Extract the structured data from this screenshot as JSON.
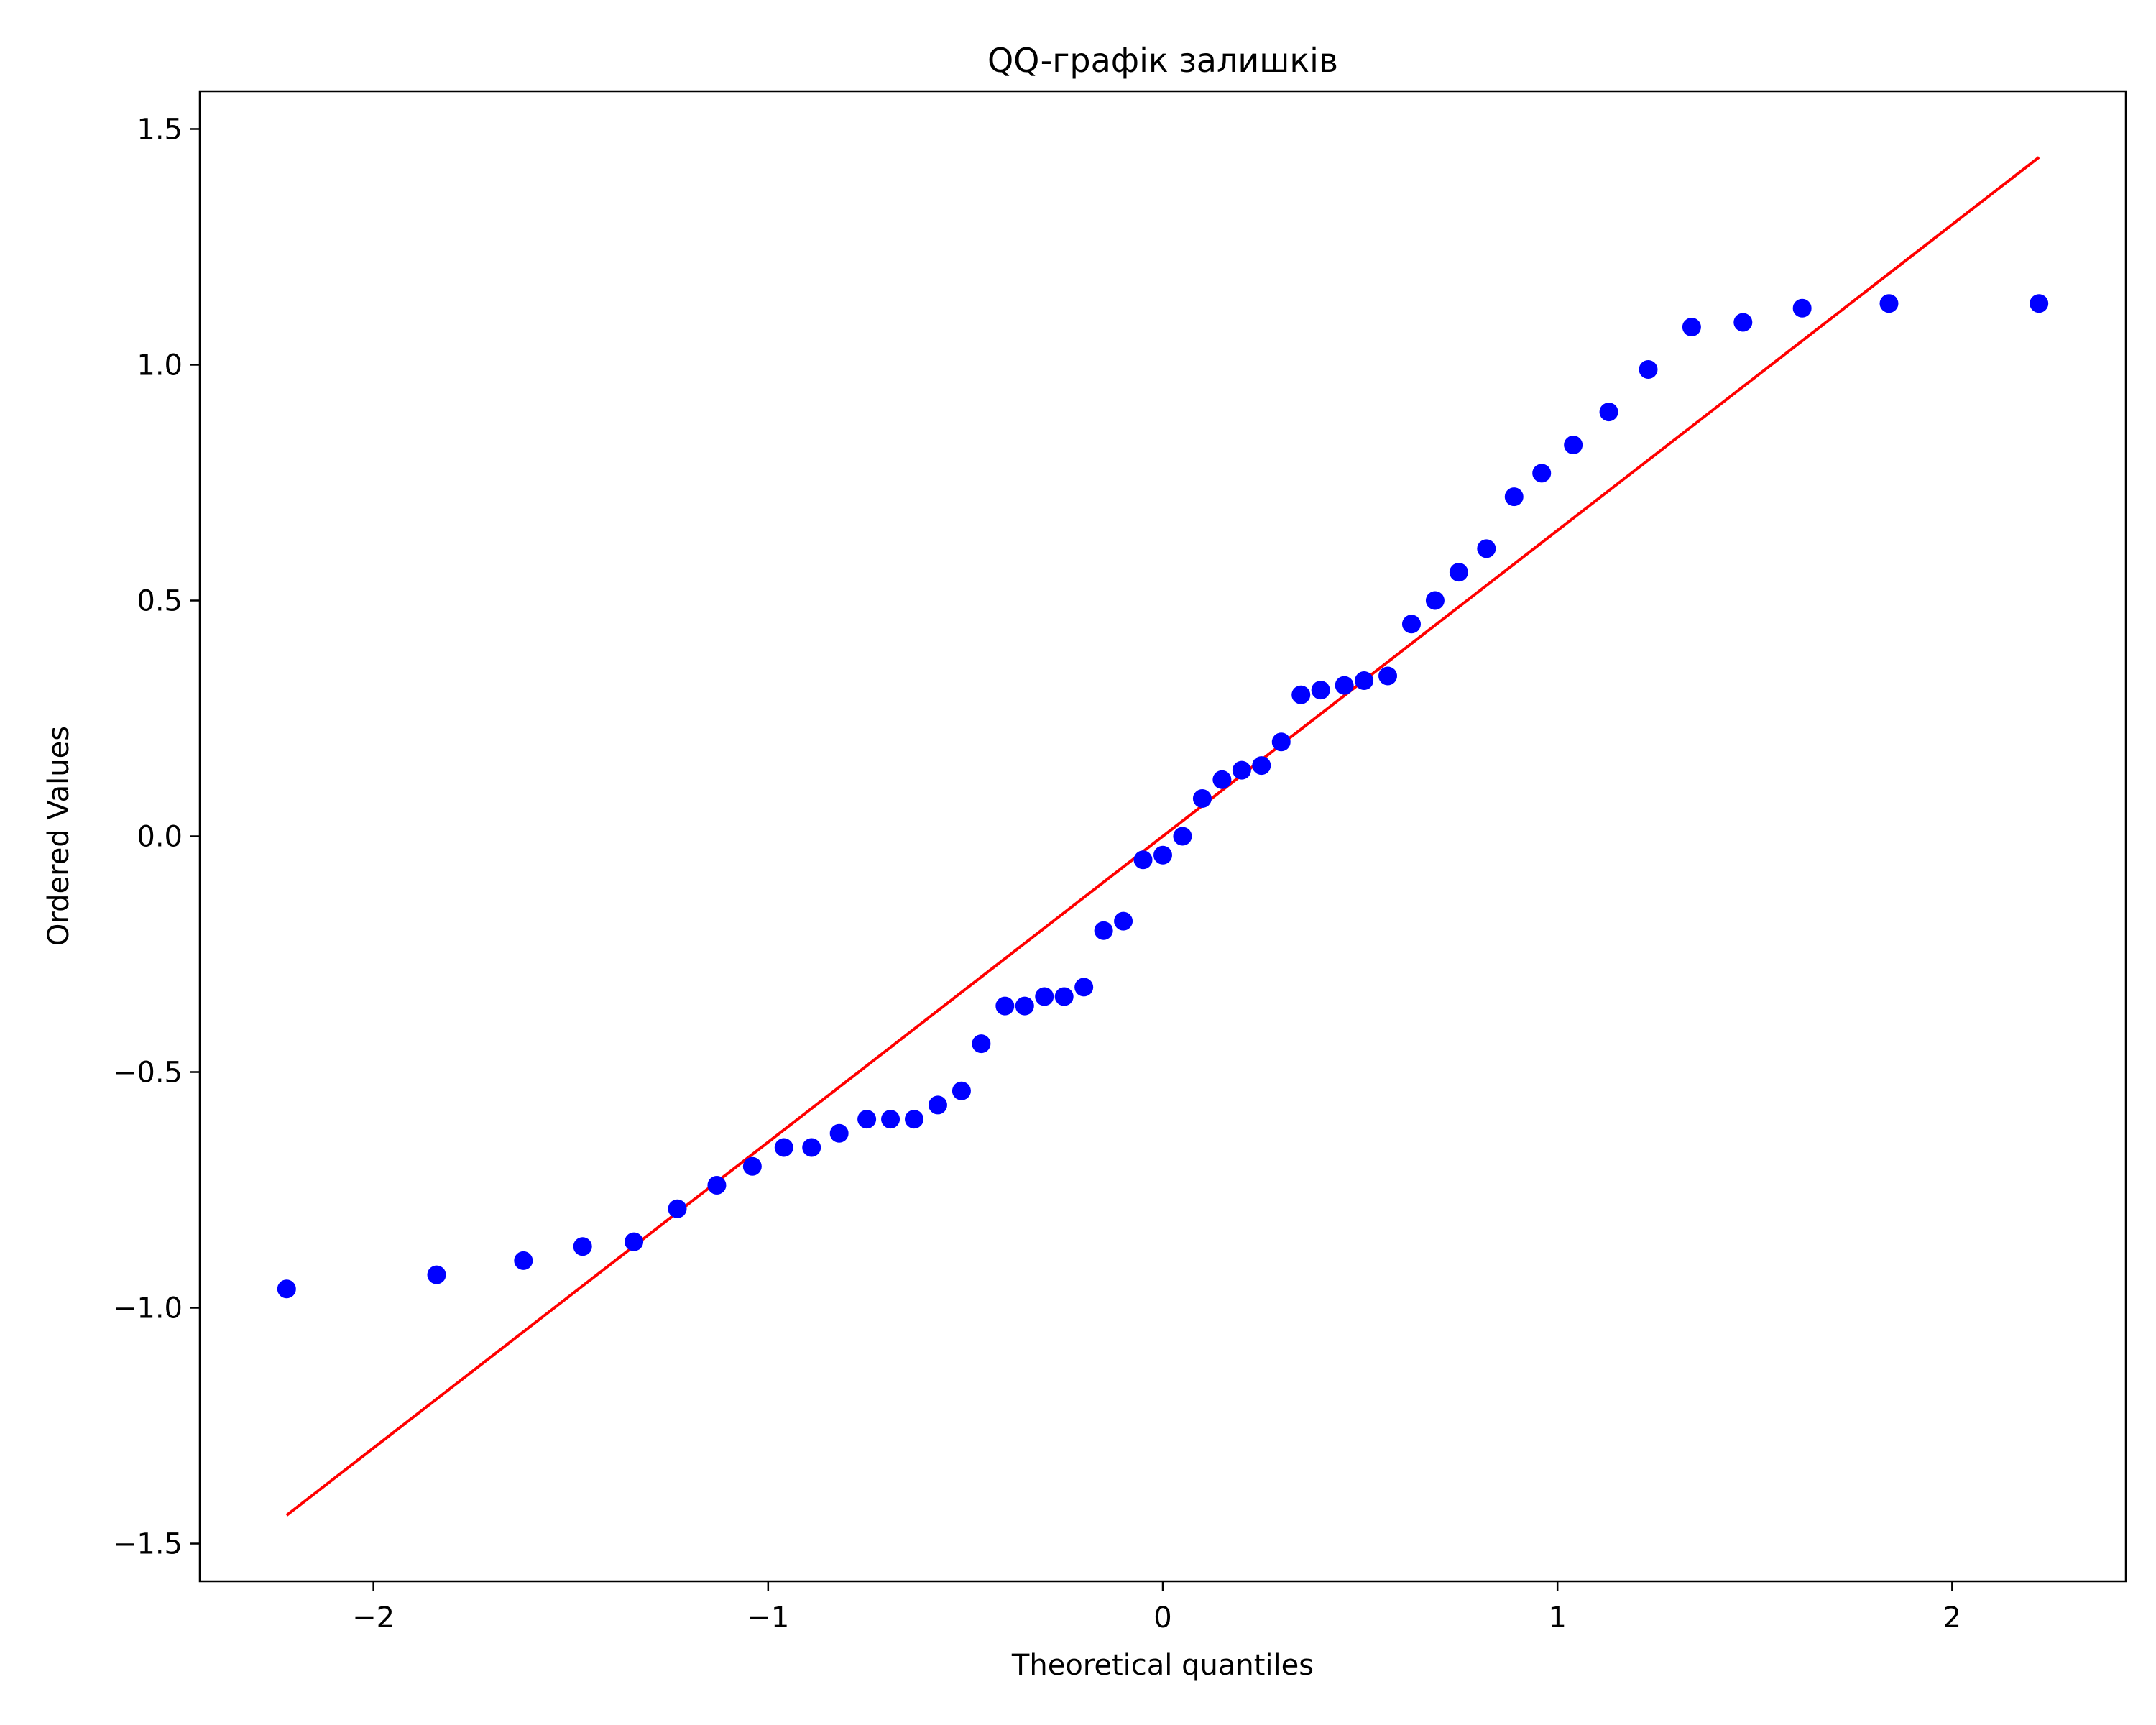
{
  "chart_data": {
    "type": "scatter",
    "title": "QQ-графік залишків",
    "xlabel": "Theoretical quantiles",
    "ylabel": "Ordered Values",
    "xlim": [
      -2.44,
      2.44
    ],
    "ylim": [
      -1.58,
      1.58
    ],
    "xticks": [
      {
        "value": -2,
        "label": "−2"
      },
      {
        "value": -1,
        "label": "−1"
      },
      {
        "value": 0,
        "label": "0"
      },
      {
        "value": 1,
        "label": "1"
      },
      {
        "value": 2,
        "label": "2"
      }
    ],
    "yticks": [
      {
        "value": -1.5,
        "label": "−1.5"
      },
      {
        "value": -1.0,
        "label": "−1.0"
      },
      {
        "value": -0.5,
        "label": "−0.5"
      },
      {
        "value": 0.0,
        "label": "0.0"
      },
      {
        "value": 0.5,
        "label": "0.5"
      },
      {
        "value": 1.0,
        "label": "1.0"
      },
      {
        "value": 1.5,
        "label": "1.5"
      }
    ],
    "grid": false,
    "series": [
      {
        "kind": "points",
        "color": "#0000ff",
        "points": [
          [
            -2.22,
            -0.96
          ],
          [
            -1.84,
            -0.93
          ],
          [
            -1.62,
            -0.9
          ],
          [
            -1.47,
            -0.87
          ],
          [
            -1.34,
            -0.86
          ],
          [
            -1.23,
            -0.79
          ],
          [
            -1.13,
            -0.74
          ],
          [
            -1.04,
            -0.7
          ],
          [
            -0.96,
            -0.66
          ],
          [
            -0.89,
            -0.66
          ],
          [
            -0.82,
            -0.63
          ],
          [
            -0.75,
            -0.6
          ],
          [
            -0.69,
            -0.6
          ],
          [
            -0.63,
            -0.6
          ],
          [
            -0.57,
            -0.57
          ],
          [
            -0.51,
            -0.54
          ],
          [
            -0.46,
            -0.44
          ],
          [
            -0.4,
            -0.36
          ],
          [
            -0.35,
            -0.36
          ],
          [
            -0.3,
            -0.34
          ],
          [
            -0.25,
            -0.34
          ],
          [
            -0.2,
            -0.32
          ],
          [
            -0.15,
            -0.2
          ],
          [
            -0.1,
            -0.18
          ],
          [
            -0.05,
            -0.05
          ],
          [
            0.0,
            -0.04
          ],
          [
            0.05,
            0.0
          ],
          [
            0.1,
            0.08
          ],
          [
            0.15,
            0.12
          ],
          [
            0.2,
            0.14
          ],
          [
            0.25,
            0.15
          ],
          [
            0.3,
            0.2
          ],
          [
            0.35,
            0.3
          ],
          [
            0.4,
            0.31
          ],
          [
            0.46,
            0.32
          ],
          [
            0.51,
            0.33
          ],
          [
            0.57,
            0.34
          ],
          [
            0.63,
            0.45
          ],
          [
            0.69,
            0.5
          ],
          [
            0.75,
            0.56
          ],
          [
            0.82,
            0.61
          ],
          [
            0.89,
            0.72
          ],
          [
            0.96,
            0.77
          ],
          [
            1.04,
            0.83
          ],
          [
            1.13,
            0.9
          ],
          [
            1.23,
            0.99
          ],
          [
            1.34,
            1.08
          ],
          [
            1.47,
            1.09
          ],
          [
            1.62,
            1.12
          ],
          [
            1.84,
            1.13
          ],
          [
            2.22,
            1.13
          ]
        ]
      },
      {
        "kind": "line",
        "color": "#ff0000",
        "points": [
          [
            -2.22,
            -1.44
          ],
          [
            2.22,
            1.44
          ]
        ]
      }
    ]
  }
}
